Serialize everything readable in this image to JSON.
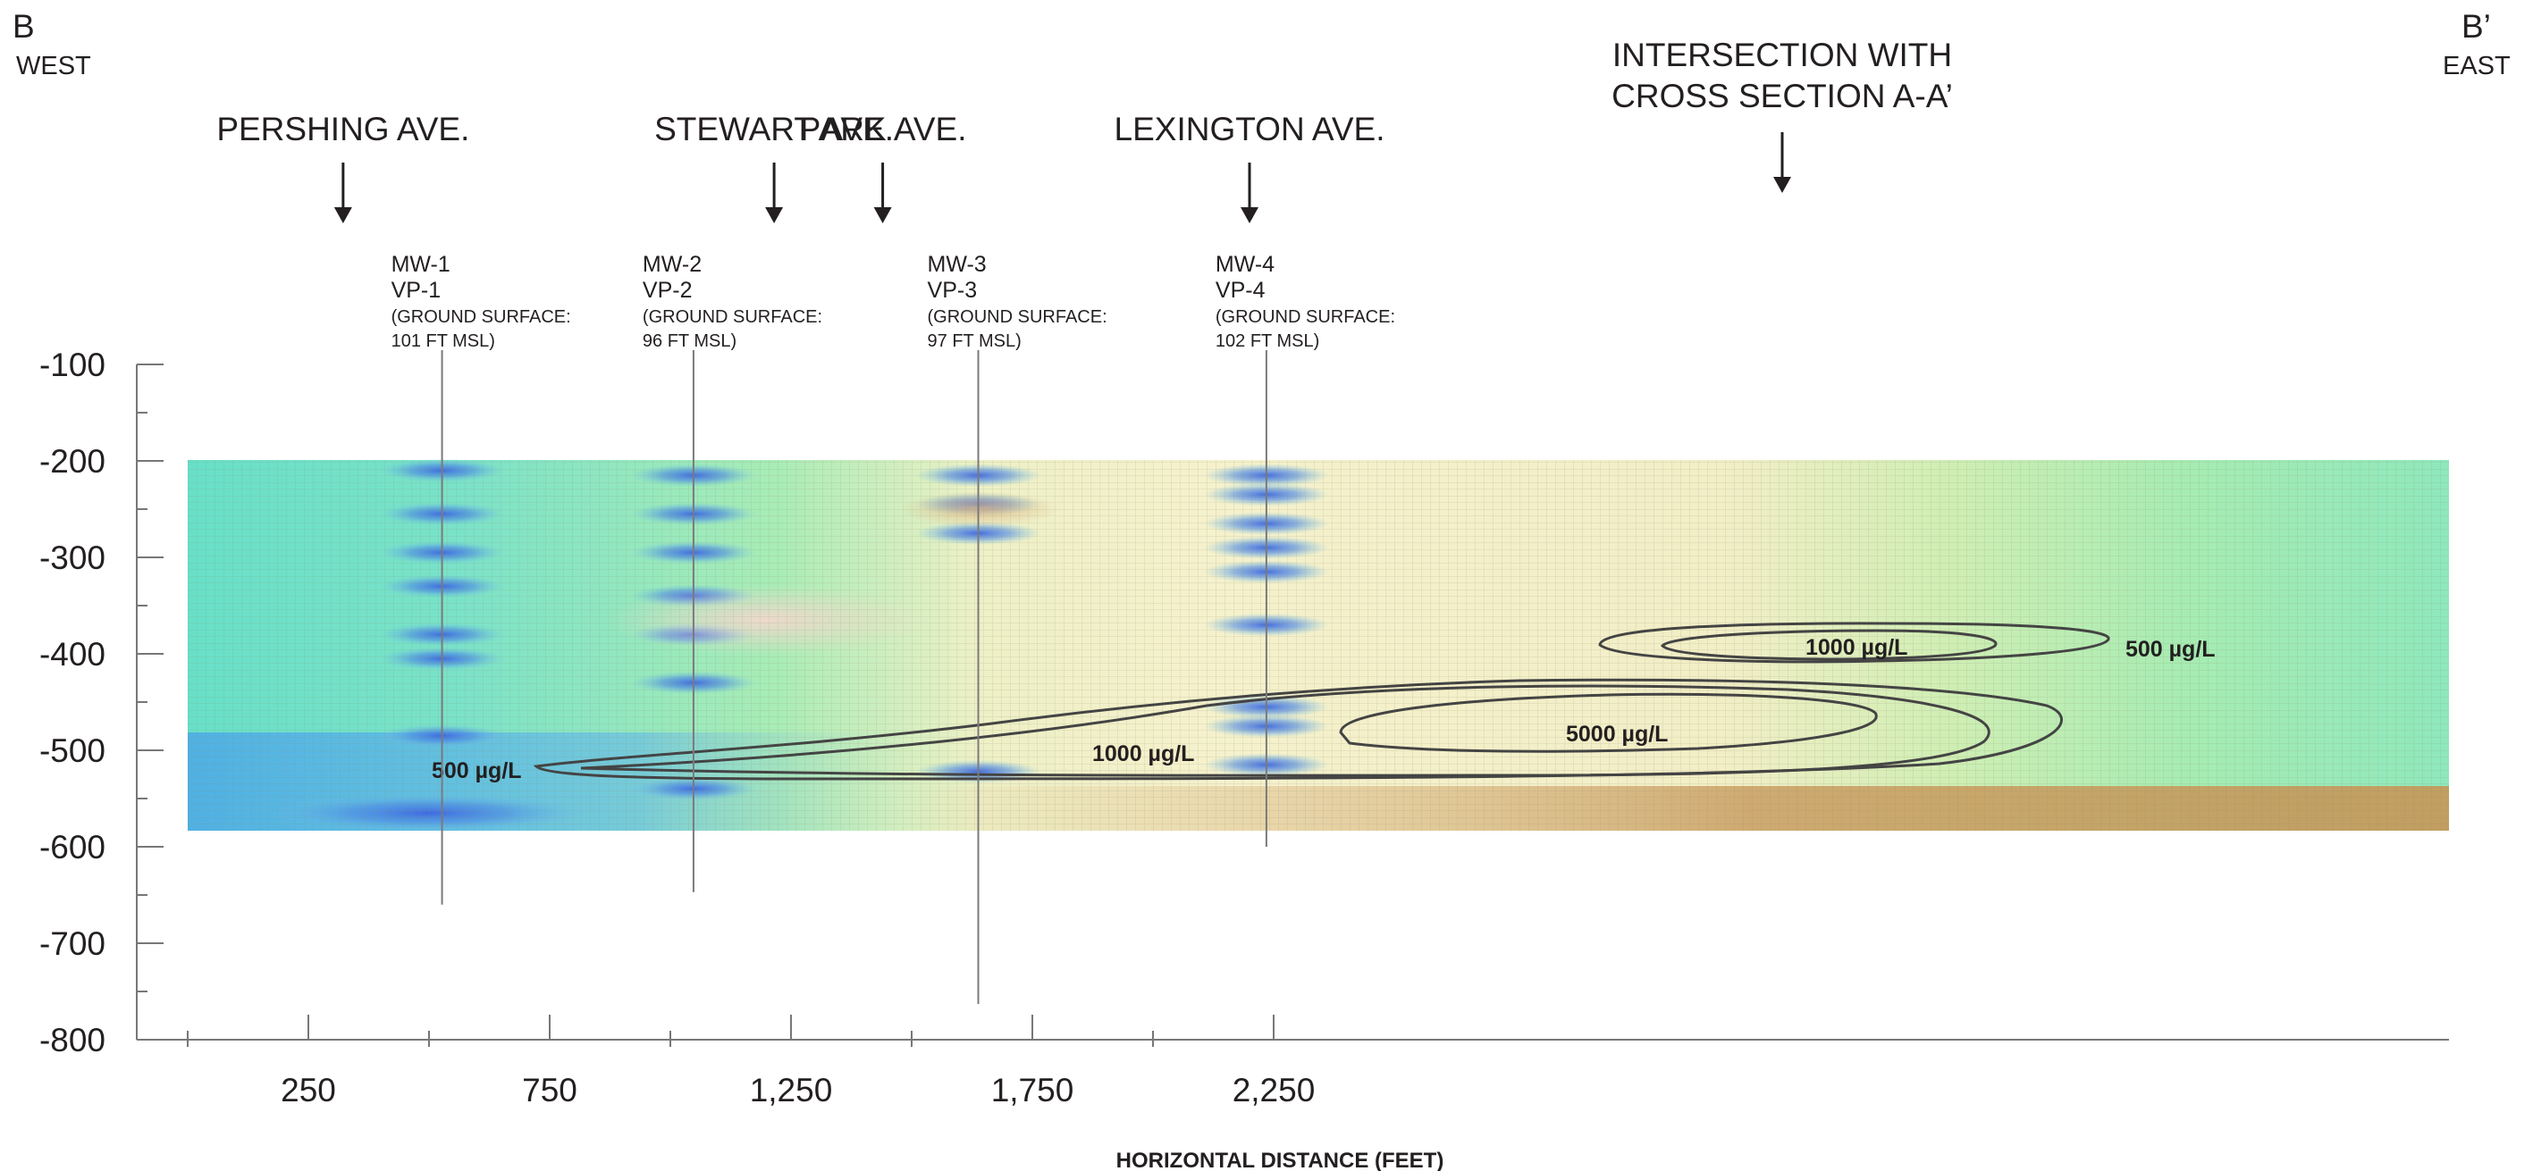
{
  "section": {
    "west_letter": "B",
    "west_word": "WEST",
    "east_letter": "B’",
    "east_word": "EAST"
  },
  "streets": [
    {
      "label": "PERSHING AVE.",
      "x": 322
    },
    {
      "label": "STEWART AVE.",
      "x": 1215
    },
    {
      "label": "PARK AVE.",
      "x": 1440
    },
    {
      "label": "LEXINGTON AVE.",
      "x": 2200
    }
  ],
  "intersection": {
    "line1": "INTERSECTION WITH",
    "line2": "CROSS SECTION A-A’",
    "x": 1660
  },
  "wells": [
    {
      "id": "MW-1",
      "vp": "VP-1",
      "gs1": "(GROUND SURFACE:",
      "gs2": "101 FT MSL)",
      "x": 527,
      "bottom": -660
    },
    {
      "id": "MW-2",
      "vp": "VP-2",
      "gs1": "(GROUND SURFACE:",
      "gs2": "96 FT MSL)",
      "x": 1048,
      "bottom": -647
    },
    {
      "id": "MW-3",
      "vp": "VP-3",
      "gs1": "(GROUND SURFACE:",
      "gs2": "97 FT MSL)",
      "x": 1638,
      "bottom": -763
    },
    {
      "id": "MW-4",
      "vp": "VP-4",
      "gs1": "(GROUND SURFACE:",
      "gs2": "102 FT MSL)",
      "x": 2235,
      "bottom": -600
    }
  ],
  "contour_labels": {
    "west_500": "500 µg/L",
    "mid_1000": "1000 µg/L",
    "core_5000": "5000 µg/L",
    "upper_1000": "1000 µg/L",
    "east_500": "500 µg/L"
  },
  "chart_data": {
    "type": "heatmap",
    "title": "",
    "xlabel": "HORIZONTAL DISTANCE (FEET)",
    "ylabel": "",
    "x_ticks": [
      250,
      750,
      1250,
      1750,
      2250
    ],
    "x_tick_labels": [
      "250",
      "750",
      "1,250",
      "1,750",
      "2,250"
    ],
    "y_ticks": [
      -100,
      -200,
      -300,
      -400,
      -500,
      -600,
      -700,
      -800
    ],
    "y_tick_labels": [
      "-100",
      "-200",
      "-300",
      "-400",
      "-500",
      "-600",
      "-700",
      "-800"
    ],
    "xlim": [
      0,
      2350
    ],
    "ylim": [
      -800,
      -100
    ],
    "data_extent": {
      "x": [
        0,
        2350
      ],
      "y": [
        -585,
        -200
      ]
    },
    "contour_levels": [
      "500 µg/L",
      "1000 µg/L",
      "5000 µg/L"
    ],
    "colors": {
      "cool": "#5aa0e6",
      "mid": "#9ee6b0",
      "neutral": "#f3efc8",
      "warm": "#c8a066",
      "contour": "#444444"
    }
  }
}
